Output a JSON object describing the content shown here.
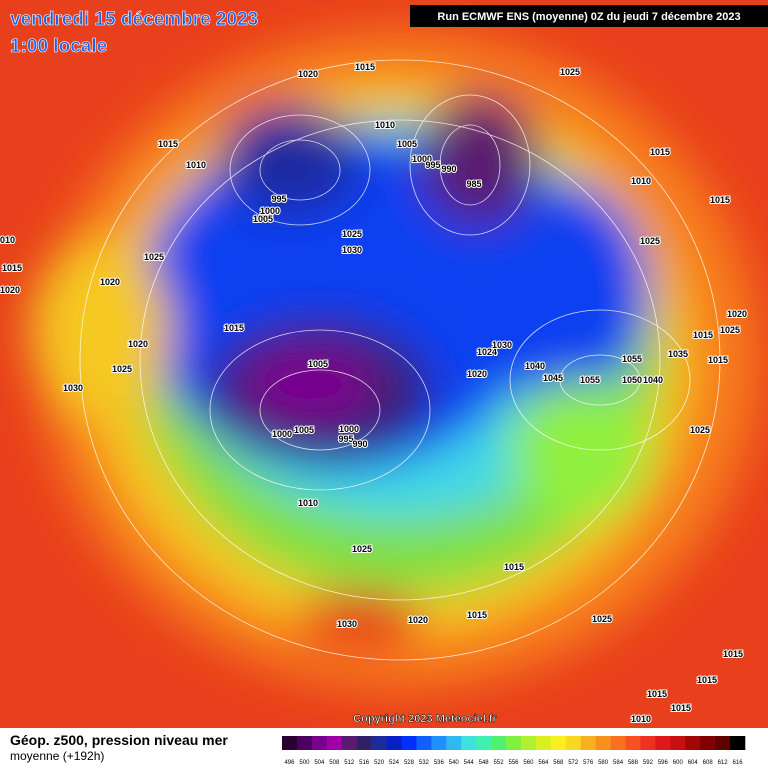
{
  "header": {
    "title": "vendredi 15 décembre 2023",
    "subtitle": "1:00 locale",
    "run": "Run ECMWF ENS (moyenne) 0Z du jeudi 7 décembre 2023"
  },
  "isobar_labels": [
    "1020",
    "1015",
    "1025",
    "1010",
    "1015",
    "1010",
    "1005",
    "1000",
    "995",
    "990",
    "985",
    "1015",
    "1010",
    "1015",
    "995",
    "1000",
    "1005",
    "1025",
    "1030",
    "1025",
    "1010",
    "1015",
    "1025",
    "1020",
    "1020",
    "1015",
    "1020",
    "1025",
    "1015",
    "1020",
    "1024",
    "1030",
    "1055",
    "1035",
    "1015",
    "1025",
    "1005",
    "1020",
    "1040",
    "1045",
    "1055",
    "1050",
    "1040",
    "1030",
    "1000",
    "1005",
    "1000",
    "995",
    "990",
    "1025",
    "1010",
    "1025",
    "1015",
    "1030",
    "1020",
    "1015",
    "1025",
    "1015",
    "1015",
    "1015",
    "1015",
    "1010"
  ],
  "copyright": "Copyright 2023 Meteociel.fr",
  "footer": {
    "line1": "Géop. z500, pression niveau mer",
    "line2": "moyenne  (+192h)"
  },
  "colorbar": {
    "labels": [
      496,
      500,
      504,
      508,
      512,
      516,
      520,
      524,
      528,
      532,
      536,
      540,
      544,
      548,
      552,
      556,
      560,
      564,
      568,
      572,
      576,
      580,
      584,
      588,
      592,
      596,
      600,
      604,
      608,
      612,
      616
    ],
    "colors": [
      "#2a0033",
      "#4b0060",
      "#7a0090",
      "#a000a8",
      "#5a1a70",
      "#30206a",
      "#1e2a9a",
      "#0a1ec8",
      "#0030ff",
      "#1060ff",
      "#2090ff",
      "#30b8f0",
      "#40e0e0",
      "#40f0b0",
      "#50f070",
      "#80f040",
      "#b0f030",
      "#d8f020",
      "#f8f020",
      "#f8d820",
      "#f8b020",
      "#f89020",
      "#f87020",
      "#f85020",
      "#f03020",
      "#e01818",
      "#c81010",
      "#a00808",
      "#800000",
      "#600000",
      "#000000"
    ]
  }
}
